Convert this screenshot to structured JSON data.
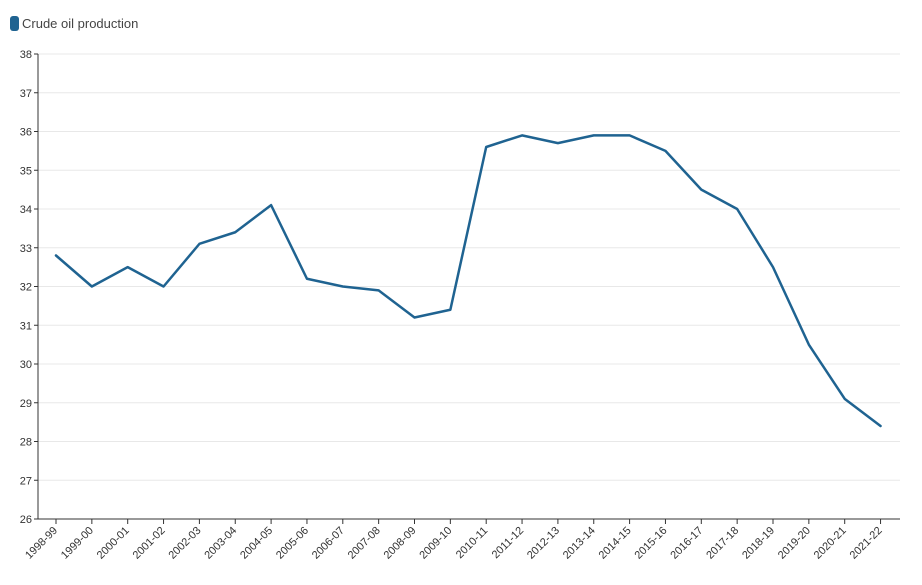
{
  "legend": {
    "label": "Crude oil production",
    "color": "#1f6391"
  },
  "chart_data": {
    "type": "line",
    "title": "",
    "xlabel": "",
    "ylabel": "",
    "ylim": [
      26,
      38
    ],
    "y_ticks": [
      26,
      27,
      28,
      29,
      30,
      31,
      32,
      33,
      34,
      35,
      36,
      37,
      38
    ],
    "grid": "horizontal",
    "legend_position": "top-left",
    "categories": [
      "1998-99",
      "1999-00",
      "2000-01",
      "2001-02",
      "2002-03",
      "2003-04",
      "2004-05",
      "2005-06",
      "2006-07",
      "2007-08",
      "2008-09",
      "2009-10",
      "2010-11",
      "2011-12",
      "2012-13",
      "2013-14",
      "2014-15",
      "2015-16",
      "2016-17",
      "2017-18",
      "2018-19",
      "2019-20",
      "2020-21",
      "2021-22"
    ],
    "series": [
      {
        "name": "Crude oil production",
        "color": "#1f6391",
        "values": [
          32.8,
          32.0,
          32.5,
          32.0,
          33.1,
          33.4,
          34.1,
          32.2,
          32.0,
          31.9,
          31.2,
          31.4,
          35.6,
          35.9,
          35.7,
          35.9,
          35.9,
          35.5,
          34.5,
          34.0,
          32.5,
          30.5,
          29.1,
          28.4
        ]
      }
    ]
  }
}
